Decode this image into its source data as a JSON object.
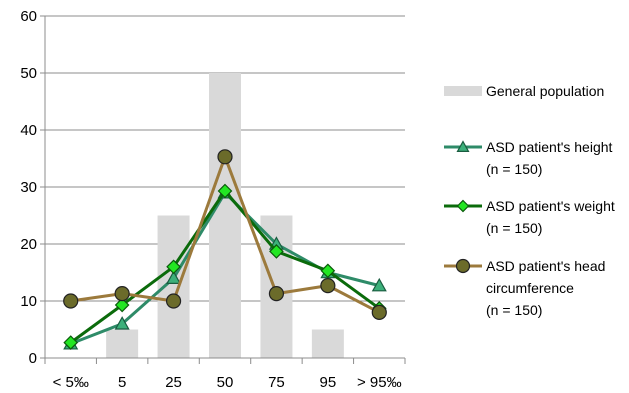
{
  "chart_data": {
    "type": "bar+line",
    "categories": [
      "< 5‰",
      "5",
      "25",
      "50",
      "75",
      "95",
      "> 95‰"
    ],
    "ylim": [
      0,
      60
    ],
    "yticks": [
      0,
      10,
      20,
      30,
      40,
      50,
      60
    ],
    "grid": "horizontal",
    "legend_position": "right",
    "bar_series": {
      "name": "General population",
      "color": "#d9d9d9",
      "values": [
        0,
        5,
        25,
        50,
        25,
        5,
        0
      ]
    },
    "line_series": [
      {
        "name_lines": [
          "ASD patient's height",
          "(n = 150)"
        ],
        "color": "#2e8b68",
        "marker": "triangle",
        "marker_fill": "#3cb07a",
        "values": [
          2.5,
          6,
          14,
          29,
          20,
          15,
          12.7
        ]
      },
      {
        "name_lines": [
          "ASD patient's weight",
          "(n = 150)"
        ],
        "color": "#0b6b0b",
        "marker": "diamond",
        "marker_fill": "#22e622",
        "values": [
          2.7,
          9.3,
          16,
          29.3,
          18.7,
          15.3,
          8.7
        ]
      },
      {
        "name_lines": [
          "ASD patient's head",
          "circumference",
          "(n = 150)"
        ],
        "color": "#9c7a3c",
        "marker": "circle",
        "marker_fill": "#6b6b2a",
        "values": [
          10,
          11.3,
          10,
          35.3,
          11.3,
          12.7,
          8
        ]
      }
    ]
  }
}
